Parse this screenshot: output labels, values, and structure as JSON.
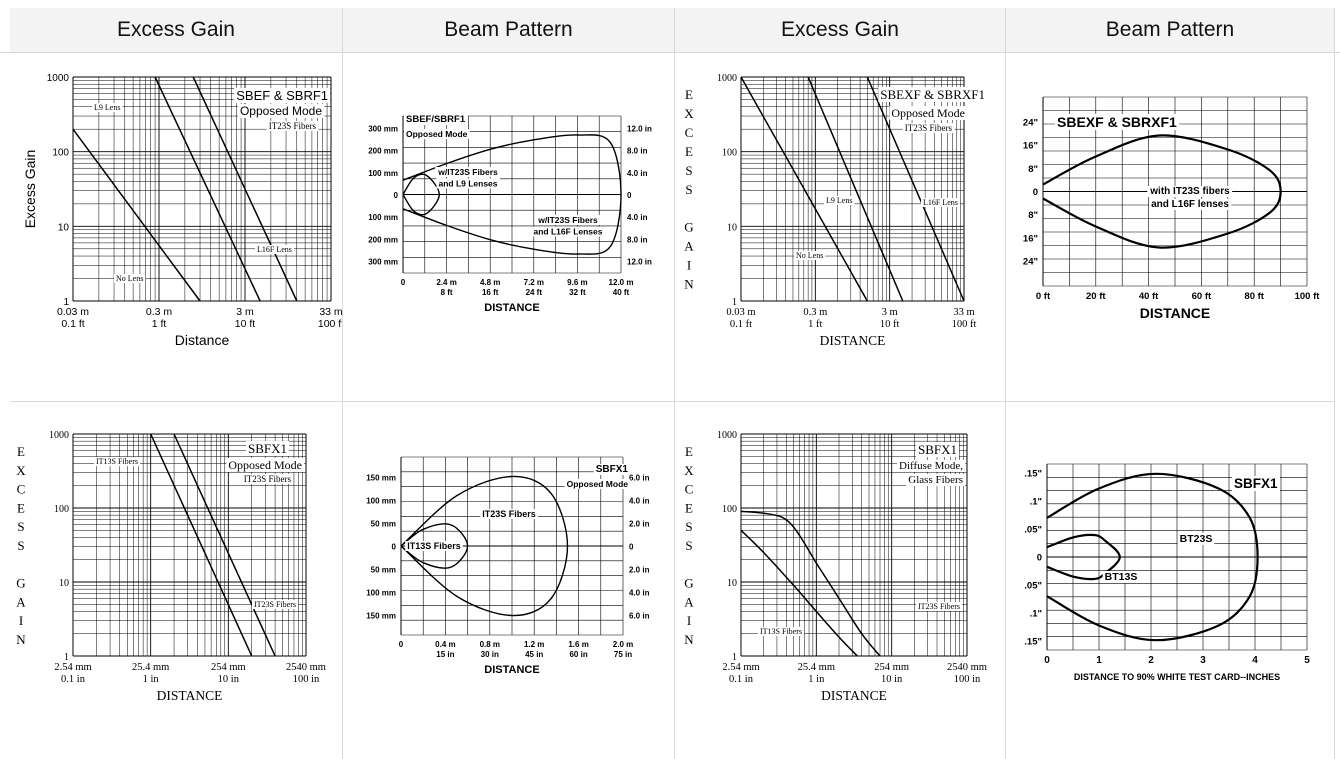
{
  "headers": [
    "Excess Gain",
    "Beam Pattern",
    "Excess Gain",
    "Beam Pattern"
  ],
  "colors": {
    "header_bg": "#f3f3f3",
    "border": "#d9d9d9",
    "line": "#000000"
  },
  "chart_data": [
    {
      "id": "eg1",
      "type": "line",
      "scale": "log-log",
      "ylabel": "Excess Gain",
      "xlabel": "Distance",
      "y_ticks": [
        "1000",
        "100",
        "10",
        "1"
      ],
      "x_ticks_top": [
        "0.03 m",
        "0.3 m",
        "3 m",
        "33 m"
      ],
      "x_ticks_bottom": [
        "0.1 ft",
        "1 ft",
        "10 ft",
        "100 ft"
      ],
      "title_lines": [
        "SBEF & SBRF1",
        "Opposed Mode",
        "IT23S Fibers"
      ],
      "curve_labels": [
        "L9 Lens",
        "L16F Lens",
        "No Lens"
      ],
      "series": [
        {
          "name": "No Lens",
          "x_ft": [
            0.1,
            3.0
          ],
          "y": [
            200,
            1
          ]
        },
        {
          "name": "L9 Lens",
          "x_ft": [
            0.9,
            15
          ],
          "y": [
            1000,
            1
          ]
        },
        {
          "name": "L16F Lens",
          "x_ft": [
            2.5,
            40
          ],
          "y": [
            1000,
            1
          ]
        }
      ]
    },
    {
      "id": "bp1",
      "type": "line",
      "xlabel": "DISTANCE",
      "x_ticks_top": [
        "0",
        "2.4 m",
        "4.8 m",
        "7.2 m",
        "9.6 m",
        "12.0 m"
      ],
      "x_ticks_bottom": [
        "8 ft",
        "16 ft",
        "24 ft",
        "32 ft",
        "40 ft"
      ],
      "y_ticks_left": [
        "300 mm",
        "200 mm",
        "100 mm",
        "0",
        "100 mm",
        "200 mm",
        "300 mm"
      ],
      "y_ticks_right": [
        "12.0 in",
        "8.0 in",
        "4.0 in",
        "0",
        "4.0 in",
        "8.0 in",
        "12.0 in"
      ],
      "title_lines": [
        "SBEF/SBRF1",
        "Opposed Mode"
      ],
      "curve_labels": [
        [
          "w/IT23S Fibers",
          "and L9 Lenses"
        ],
        [
          "w/IT23S Fibers",
          "and L16F Lenses"
        ]
      ],
      "series": [
        {
          "name": "w/IT23S Fibers and L9 Lenses",
          "x_m": [
            0,
            0.6,
            1.3,
            2.0,
            1.3,
            0.6,
            0
          ],
          "y_mm": [
            0,
            70,
            80,
            0,
            -80,
            -70,
            0
          ]
        },
        {
          "name": "w/IT23S Fibers and L16F Lenses",
          "x_m": [
            0,
            2.4,
            4.8,
            7.2,
            9.6,
            11.4,
            12.0,
            11.4,
            9.6,
            7.2,
            4.8,
            2.4,
            0
          ],
          "y_mm": [
            60,
            130,
            190,
            230,
            250,
            220,
            0,
            -220,
            -250,
            -230,
            -190,
            -130,
            -60
          ]
        }
      ]
    },
    {
      "id": "eg2",
      "type": "line",
      "scale": "log-log",
      "ylabel_letters": [
        "E",
        "X",
        "C",
        "E",
        "S",
        "S",
        "",
        "G",
        "A",
        "I",
        "N"
      ],
      "xlabel": "DISTANCE",
      "y_ticks": [
        "1000",
        "100",
        "10",
        "1"
      ],
      "x_ticks_top": [
        "0.03 m",
        "0.3 m",
        "3 m",
        "33 m"
      ],
      "x_ticks_bottom": [
        "0.1 ft",
        "1 ft",
        "10 ft",
        "100 ft"
      ],
      "title_lines": [
        "SBEXF & SBRXF1",
        "Opposed Mode",
        "IT23S Fibers"
      ],
      "curve_labels": [
        "L9 Lens",
        "L16F Lens",
        "No Lens"
      ],
      "series": [
        {
          "name": "No Lens",
          "x_ft": [
            0.1,
            5.0
          ],
          "y": [
            1000,
            1
          ]
        },
        {
          "name": "L9 Lens",
          "x_ft": [
            0.8,
            15
          ],
          "y": [
            1000,
            1
          ]
        },
        {
          "name": "L16F Lens",
          "x_ft": [
            5,
            100
          ],
          "y": [
            1000,
            1
          ]
        }
      ]
    },
    {
      "id": "bp2",
      "type": "line",
      "xlabel": "DISTANCE",
      "x_ticks": [
        "0 ft",
        "20 ft",
        "40 ft",
        "60 ft",
        "80 ft",
        "100 ft"
      ],
      "y_ticks": [
        "24\"",
        "16\"",
        "8\"",
        "0",
        "8\"",
        "16\"",
        "24\""
      ],
      "title_lines": [
        "SBEXF & SBRXF1"
      ],
      "curve_labels": [
        [
          "with IT23S fibers",
          "and L16F lenses"
        ]
      ],
      "series": [
        {
          "name": "with IT23S fibers and L16F lenses",
          "x_ft": [
            0,
            20,
            44,
            70,
            86,
            90,
            86,
            70,
            44,
            20,
            0
          ],
          "y_in": [
            2,
            10,
            16,
            12,
            6,
            0,
            -6,
            -12,
            -16,
            -10,
            -2
          ]
        }
      ]
    },
    {
      "id": "eg3",
      "type": "line",
      "scale": "log-log",
      "ylabel_letters": [
        "E",
        "X",
        "C",
        "E",
        "S",
        "S",
        "",
        "G",
        "A",
        "I",
        "N"
      ],
      "xlabel": "DISTANCE",
      "y_ticks": [
        "1000",
        "100",
        "10",
        "1"
      ],
      "x_ticks_top": [
        "2.54 mm",
        "25.4 mm",
        "254 mm",
        "2540 mm"
      ],
      "x_ticks_bottom": [
        "0.1 in",
        "1 in",
        "10 in",
        "100 in"
      ],
      "title_lines": [
        "SBFX1",
        "Opposed Mode",
        "IT23S Fibers"
      ],
      "curve_labels": [
        "IT13S Fibers",
        "IT23S Fibers"
      ],
      "series": [
        {
          "name": "IT13S Fibers",
          "x_in": [
            1,
            20
          ],
          "y": [
            1000,
            1
          ]
        },
        {
          "name": "IT23S Fibers",
          "x_in": [
            2,
            40
          ],
          "y": [
            1000,
            1
          ]
        }
      ]
    },
    {
      "id": "bp3",
      "type": "line",
      "xlabel": "DISTANCE",
      "x_ticks_top": [
        "0",
        "0.4 m",
        "0.8 m",
        "1.2 m",
        "1.6 m",
        "2.0 m"
      ],
      "x_ticks_bottom": [
        "15 in",
        "30 in",
        "45 in",
        "60 in",
        "75 in"
      ],
      "y_ticks_left": [
        "150 mm",
        "100 mm",
        "50 mm",
        "0",
        "50 mm",
        "100 mm",
        "150 mm"
      ],
      "y_ticks_right": [
        "6.0 in",
        "4.0 in",
        "2.0 in",
        "0",
        "2.0 in",
        "4.0 in",
        "6.0 in"
      ],
      "title_lines": [
        "SBFX1",
        "Opposed Mode"
      ],
      "curve_labels": [
        "IT23S Fibers",
        "IT13S Fibers"
      ],
      "series": [
        {
          "name": "IT13S Fibers",
          "x_m": [
            0,
            0.2,
            0.45,
            0.6,
            0.45,
            0.2,
            0
          ],
          "y_mm": [
            0,
            30,
            38,
            0,
            -38,
            -30,
            0
          ]
        },
        {
          "name": "IT23S Fibers",
          "x_m": [
            0,
            0.5,
            1.0,
            1.35,
            1.5,
            1.35,
            1.0,
            0.5,
            0
          ],
          "y_mm": [
            0,
            90,
            125,
            95,
            0,
            -95,
            -125,
            -90,
            0
          ]
        }
      ]
    },
    {
      "id": "eg4",
      "type": "line",
      "scale": "log-log",
      "ylabel_letters": [
        "E",
        "X",
        "C",
        "E",
        "S",
        "S",
        "",
        "G",
        "A",
        "I",
        "N"
      ],
      "xlabel": "DISTANCE",
      "y_ticks": [
        "1000",
        "100",
        "10",
        "1"
      ],
      "x_ticks_top": [
        "2.54 mm",
        "25.4 mm",
        "254 mm",
        "2540 mm"
      ],
      "x_ticks_bottom": [
        "0.1 in",
        "1 in",
        "10 in",
        "100 in"
      ],
      "title_lines": [
        "SBFX1",
        "Diffuse Mode,",
        "Glass Fibers"
      ],
      "curve_labels": [
        "IT13S Fibers",
        "IT23S Fibers"
      ],
      "series": [
        {
          "name": "IT13S Fibers",
          "x_in": [
            0.1,
            0.2,
            0.5,
            1.0,
            2.0,
            3.5
          ],
          "y": [
            50,
            25,
            9,
            4,
            1.8,
            1
          ]
        },
        {
          "name": "IT23S Fibers",
          "x_in": [
            0.1,
            0.2,
            0.35,
            0.5,
            0.7,
            1.0,
            2.0,
            4.0,
            7.0
          ],
          "y": [
            90,
            85,
            75,
            55,
            33,
            18,
            6,
            2,
            1
          ]
        }
      ]
    },
    {
      "id": "bp4",
      "type": "line",
      "xlabel": "DISTANCE TO 90% WHITE TEST CARD--INCHES",
      "x_ticks": [
        "0",
        "1",
        "2",
        "3",
        "4",
        "5"
      ],
      "y_ticks": [
        ".15\"",
        ".1\"",
        ".05\"",
        "0",
        ".05\"",
        ".1\"",
        ".15\""
      ],
      "title_lines": [
        "SBFX1"
      ],
      "curve_labels": [
        "BT23S",
        "BT13S"
      ],
      "series": [
        {
          "name": "BT23S",
          "x_in": [
            0,
            1.0,
            2.1,
            3.3,
            3.9,
            4.05,
            3.9,
            3.3,
            2.1,
            1.0,
            0
          ],
          "y_in": [
            0.08,
            0.14,
            0.17,
            0.14,
            0.08,
            0,
            -0.08,
            -0.14,
            -0.17,
            -0.14,
            -0.08
          ]
        },
        {
          "name": "BT13S",
          "x_in": [
            0,
            0.5,
            0.9,
            1.1,
            1.4,
            1.1,
            0.9,
            0.5,
            0
          ],
          "y_in": [
            0.02,
            0.04,
            0.045,
            0.035,
            0,
            -0.035,
            -0.045,
            -0.04,
            -0.02
          ]
        }
      ]
    }
  ]
}
